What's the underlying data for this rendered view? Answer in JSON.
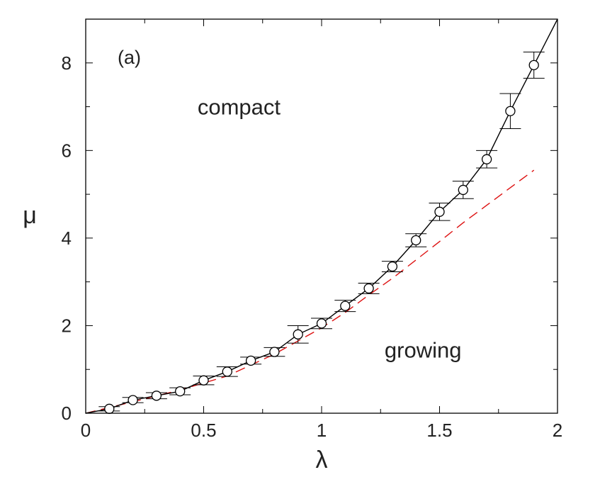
{
  "chart_data": {
    "type": "line",
    "panel_label": "(a)",
    "xlabel": "λ",
    "ylabel": "μ",
    "xlim": [
      0,
      2
    ],
    "ylim": [
      0,
      9
    ],
    "x_ticks": [
      {
        "value": 0,
        "label": "0"
      },
      {
        "value": 0.5,
        "label": "0.5"
      },
      {
        "value": 1,
        "label": "1"
      },
      {
        "value": 1.5,
        "label": "1.5"
      },
      {
        "value": 2,
        "label": "2"
      }
    ],
    "y_ticks": [
      {
        "value": 0,
        "label": "0"
      },
      {
        "value": 2,
        "label": "2"
      },
      {
        "value": 4,
        "label": "4"
      },
      {
        "value": 6,
        "label": "6"
      },
      {
        "value": 8,
        "label": "8"
      }
    ],
    "grid": false,
    "annotations": [
      {
        "text": "compact",
        "x": 0.65,
        "y": 7.0
      },
      {
        "text": "growing",
        "x": 1.43,
        "y": 1.45
      }
    ],
    "series": [
      {
        "style": "line-with-circle-markers-and-error-bars",
        "color": "#000000",
        "points": [
          {
            "x": 0.1,
            "y": 0.1,
            "err": 0.05
          },
          {
            "x": 0.2,
            "y": 0.3,
            "err": 0.06
          },
          {
            "x": 0.3,
            "y": 0.4,
            "err": 0.07
          },
          {
            "x": 0.4,
            "y": 0.5,
            "err": 0.08
          },
          {
            "x": 0.5,
            "y": 0.75,
            "err": 0.1
          },
          {
            "x": 0.6,
            "y": 0.95,
            "err": 0.11
          },
          {
            "x": 0.7,
            "y": 1.2,
            "err": 0.08
          },
          {
            "x": 0.8,
            "y": 1.4,
            "err": 0.1
          },
          {
            "x": 0.9,
            "y": 1.8,
            "err": 0.2
          },
          {
            "x": 1.0,
            "y": 2.05,
            "err": 0.12
          },
          {
            "x": 1.1,
            "y": 2.45,
            "err": 0.13
          },
          {
            "x": 1.2,
            "y": 2.85,
            "err": 0.12
          },
          {
            "x": 1.3,
            "y": 3.35,
            "err": 0.12
          },
          {
            "x": 1.4,
            "y": 3.95,
            "err": 0.15
          },
          {
            "x": 1.5,
            "y": 4.6,
            "err": 0.2
          },
          {
            "x": 1.6,
            "y": 5.1,
            "err": 0.2
          },
          {
            "x": 1.7,
            "y": 5.8,
            "err": 0.2
          },
          {
            "x": 1.8,
            "y": 6.9,
            "err": 0.4
          },
          {
            "x": 1.9,
            "y": 7.95,
            "err": 0.3
          }
        ],
        "extension_to": {
          "x": 2.0,
          "y": 9.0
        }
      },
      {
        "style": "dashed-line",
        "color": "#dd1111",
        "x": [
          0,
          0.2,
          0.4,
          0.6,
          0.8,
          1.0,
          1.1,
          1.2,
          1.3,
          1.4,
          1.5,
          1.6,
          1.7,
          1.8,
          1.9
        ],
        "y": [
          0,
          0.26,
          0.53,
          0.85,
          1.35,
          1.95,
          2.3,
          2.7,
          3.08,
          3.5,
          3.92,
          4.35,
          4.75,
          5.15,
          5.55
        ]
      }
    ]
  }
}
